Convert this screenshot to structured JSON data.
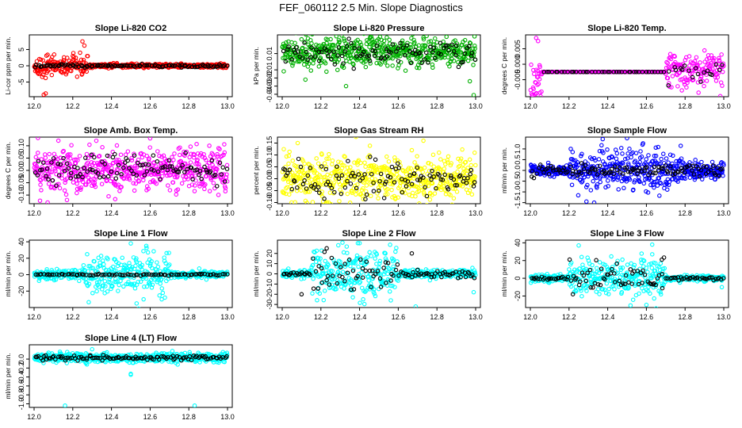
{
  "title": "FEF_060112  2.5 Min. Slope Diagnostics",
  "colors": {
    "background": "#ffffff",
    "axis": "#000000",
    "secondary": "#000000"
  },
  "chart_data": [
    {
      "type": "scatter",
      "title": "Slope Li-820 CO2",
      "ylabel": "Li-cor ppm per min.",
      "color": "#ff0000",
      "xlim": [
        12.0,
        13.0
      ],
      "ylim": [
        -9.5,
        9.5
      ],
      "xticks": [
        "12.0",
        "12.2",
        "12.4",
        "12.6",
        "12.8",
        "13.0"
      ],
      "yticks": [
        {
          "v": 5,
          "label": "5"
        },
        {
          "v": 0,
          "label": "0"
        },
        {
          "v": -5,
          "label": "-5"
        }
      ],
      "series": [
        {
          "name": "primary",
          "pattern": [
            {
              "x0": 12.0,
              "x1": 12.28,
              "sd": 1.5
            },
            {
              "x0": 12.28,
              "x1": 13.0,
              "sd": 0.3
            }
          ],
          "n": 520,
          "extra": [
            [
              12.06,
              -8.5
            ],
            [
              12.05,
              -8.9
            ],
            [
              12.25,
              7.5
            ],
            [
              12.26,
              6.2
            ],
            [
              12.07,
              3.4
            ]
          ]
        },
        {
          "name": "secondary",
          "pattern": [
            {
              "x0": 12.0,
              "x1": 13.0,
              "sd": 0.25
            }
          ],
          "n": 110,
          "extra": []
        }
      ]
    },
    {
      "type": "scatter",
      "title": "Slope Li-820 Pressure",
      "ylabel": "kPa per min.",
      "color": "#00b000",
      "xlim": [
        12.0,
        13.0
      ],
      "ylim": [
        -0.043,
        0.033
      ],
      "xticks": [
        "12.0",
        "12.2",
        "12.4",
        "12.6",
        "12.8",
        "13.0"
      ],
      "yticks": [
        {
          "v": 0.01,
          "label": "0.01"
        },
        {
          "v": -0.01,
          "label": "-0.01"
        },
        {
          "v": -0.02,
          "label": "-0.02"
        },
        {
          "v": -0.03,
          "label": "-0.03"
        },
        {
          "v": -0.04,
          "label": "-0.04"
        }
      ],
      "series": [
        {
          "name": "primary",
          "pattern": [
            {
              "x0": 12.0,
              "x1": 13.0,
              "sd": 0.009,
              "mean": 0.012
            }
          ],
          "n": 540,
          "extra": [
            [
              12.33,
              -0.03
            ],
            [
              12.99,
              -0.041
            ],
            [
              12.97,
              -0.024
            ],
            [
              12.12,
              -0.022
            ]
          ]
        },
        {
          "name": "secondary",
          "pattern": [
            {
              "x0": 12.0,
              "x1": 13.0,
              "sd": 0.007,
              "mean": 0.012
            }
          ],
          "n": 100,
          "extra": []
        }
      ]
    },
    {
      "type": "scatter",
      "title": "Slope Li-820 Temp.",
      "ylabel": "degrees C per min.",
      "color": "#ff00ff",
      "xlim": [
        12.0,
        13.0
      ],
      "ylim": [
        -0.0105,
        0.0095
      ],
      "xticks": [
        "12.0",
        "12.2",
        "12.4",
        "12.6",
        "12.8",
        "13.0"
      ],
      "yticks": [
        {
          "v": 0.005,
          "label": "0.005"
        },
        {
          "v": 0,
          "label": "0.000"
        },
        {
          "v": -0.005,
          "label": "-0.005"
        }
      ],
      "series": [
        {
          "name": "primary",
          "pattern": [
            {
              "x0": 12.0,
              "x1": 12.06,
              "sd": 0.005,
              "mean": -0.005
            },
            {
              "x0": 12.06,
              "x1": 12.7,
              "sd": 0.0,
              "mean": -0.0025,
              "line": true
            },
            {
              "x0": 12.7,
              "x1": 13.0,
              "sd": 0.003,
              "mean": -0.002
            }
          ],
          "n": 480,
          "extra": [
            [
              12.03,
              0.0085
            ],
            [
              12.04,
              0.0075
            ],
            [
              12.03,
              -0.0095
            ],
            [
              12.05,
              -0.0092
            ]
          ]
        },
        {
          "name": "secondary",
          "pattern": [
            {
              "x0": 12.06,
              "x1": 12.7,
              "sd": 0.0,
              "mean": -0.0025,
              "line": true
            },
            {
              "x0": 12.7,
              "x1": 13.0,
              "sd": 0.002,
              "mean": -0.002
            }
          ],
          "n": 60,
          "extra": []
        }
      ]
    },
    {
      "type": "scatter",
      "title": "Slope Amb. Box Temp.",
      "ylabel": "degrees C per min.",
      "color": "#ff00ff",
      "xlim": [
        12.0,
        13.0
      ],
      "ylim": [
        -0.135,
        0.135
      ],
      "xticks": [
        "12.0",
        "12.2",
        "12.4",
        "12.6",
        "12.8",
        "13.0"
      ],
      "yticks": [
        {
          "v": 0.1,
          "label": "0.10"
        },
        {
          "v": 0.05,
          "label": "0.05"
        },
        {
          "v": 0,
          "label": "0.00"
        },
        {
          "v": -0.05,
          "label": "-0.05"
        },
        {
          "v": -0.1,
          "label": "-0.10"
        }
      ],
      "series": [
        {
          "name": "primary",
          "pattern": [
            {
              "x0": 12.0,
              "x1": 13.0,
              "sd": 0.045,
              "mean": 0.0
            }
          ],
          "n": 560,
          "extra": [
            [
              12.6,
              0.13
            ],
            [
              12.07,
              -0.13
            ],
            [
              12.17,
              -0.12
            ]
          ]
        },
        {
          "name": "secondary",
          "pattern": [
            {
              "x0": 12.0,
              "x1": 13.0,
              "sd": 0.03,
              "mean": 0.005
            }
          ],
          "n": 110,
          "extra": []
        }
      ]
    },
    {
      "type": "scatter",
      "title": "Slope Gas Stream RH",
      "ylabel": "percent per min.",
      "color": "#ffff00",
      "xlim": [
        12.0,
        13.0
      ],
      "ylim": [
        -0.105,
        0.175
      ],
      "xticks": [
        "12.0",
        "12.2",
        "12.4",
        "12.6",
        "12.8",
        "13.0"
      ],
      "yticks": [
        {
          "v": 0.15,
          "label": "0.15"
        },
        {
          "v": 0.1,
          "label": "0.10"
        },
        {
          "v": 0.05,
          "label": "0.05"
        },
        {
          "v": 0,
          "label": "0.00"
        },
        {
          "v": -0.05,
          "label": "-0.05"
        },
        {
          "v": -0.1,
          "label": "-0.10"
        }
      ],
      "series": [
        {
          "name": "primary",
          "pattern": [
            {
              "x0": 12.0,
              "x1": 13.0,
              "sd": 0.045,
              "mean": 0.0
            }
          ],
          "n": 560,
          "extra": [
            [
              12.08,
              0.15
            ],
            [
              12.73,
              0.16
            ],
            [
              12.67,
              0.12
            ],
            [
              12.24,
              -0.1
            ]
          ]
        },
        {
          "name": "secondary",
          "pattern": [
            {
              "x0": 12.0,
              "x1": 13.0,
              "sd": 0.035,
              "mean": 0.0
            }
          ],
          "n": 110,
          "extra": []
        }
      ]
    },
    {
      "type": "scatter",
      "title": "Slope Sample Flow",
      "ylabel": "ml/min per min.",
      "color": "#0000ff",
      "xlim": [
        12.0,
        13.0
      ],
      "ylim": [
        -1.55,
        1.55
      ],
      "xticks": [
        "12.0",
        "12.2",
        "12.4",
        "12.6",
        "12.8",
        "13.0"
      ],
      "yticks": [
        {
          "v": 1.0,
          "label": "1.0"
        },
        {
          "v": 0.5,
          "label": "0.5"
        },
        {
          "v": 0,
          "label": "0.0"
        },
        {
          "v": -0.5,
          "label": "-0.5"
        },
        {
          "v": -1.0,
          "label": "-1.0"
        },
        {
          "v": -1.5,
          "label": "-1.5"
        }
      ],
      "series": [
        {
          "name": "primary",
          "pattern": [
            {
              "x0": 12.0,
              "x1": 12.2,
              "sd": 0.12
            },
            {
              "x0": 12.2,
              "x1": 12.8,
              "sd": 0.45
            },
            {
              "x0": 12.8,
              "x1": 13.0,
              "sd": 0.2
            }
          ],
          "n": 560,
          "extra": [
            [
              12.5,
              1.5
            ],
            [
              12.33,
              -1.5
            ],
            [
              12.29,
              -1.45
            ],
            [
              12.58,
              1.2
            ]
          ]
        },
        {
          "name": "secondary",
          "pattern": [
            {
              "x0": 12.0,
              "x1": 13.0,
              "sd": 0.15
            }
          ],
          "n": 110,
          "extra": []
        }
      ]
    },
    {
      "type": "scatter",
      "title": "Slope Line 1 Flow",
      "ylabel": "ml/min per min.",
      "color": "#00ffff",
      "xlim": [
        12.0,
        13.0
      ],
      "ylim": [
        -40,
        42
      ],
      "xticks": [
        "12.0",
        "12.2",
        "12.4",
        "12.6",
        "12.8",
        "13.0"
      ],
      "yticks": [
        {
          "v": 40,
          "label": "40"
        },
        {
          "v": 20,
          "label": "20"
        },
        {
          "v": 0,
          "label": "0"
        },
        {
          "v": -20,
          "label": "-20"
        }
      ],
      "series": [
        {
          "name": "primary",
          "pattern": [
            {
              "x0": 12.0,
              "x1": 12.25,
              "sd": 3
            },
            {
              "x0": 12.25,
              "x1": 12.7,
              "sd": 12
            },
            {
              "x0": 12.7,
              "x1": 13.0,
              "sd": 2
            }
          ],
          "n": 520,
          "extra": [
            [
              12.5,
              38
            ],
            [
              12.58,
              35
            ],
            [
              12.53,
              -35
            ],
            [
              12.66,
              -30
            ]
          ]
        },
        {
          "name": "secondary",
          "pattern": [
            {
              "x0": 12.0,
              "x1": 13.0,
              "sd": 0.5
            }
          ],
          "n": 90,
          "extra": []
        }
      ]
    },
    {
      "type": "scatter",
      "title": "Slope Line 2 Flow",
      "ylabel": "ml/min per min.",
      "color": "#00ffff",
      "xlim": [
        12.0,
        13.0
      ],
      "ylim": [
        -33,
        33
      ],
      "xticks": [
        "12.0",
        "12.2",
        "12.4",
        "12.6",
        "12.8",
        "13.0"
      ],
      "yticks": [
        {
          "v": 20,
          "label": "20"
        },
        {
          "v": 10,
          "label": "10"
        },
        {
          "v": 0,
          "label": "0"
        },
        {
          "v": -10,
          "label": "-10"
        },
        {
          "v": -20,
          "label": "-20"
        },
        {
          "v": -30,
          "label": "-30"
        }
      ],
      "series": [
        {
          "name": "primary",
          "pattern": [
            {
              "x0": 12.0,
              "x1": 12.15,
              "sd": 2
            },
            {
              "x0": 12.15,
              "x1": 12.6,
              "sd": 11
            },
            {
              "x0": 12.6,
              "x1": 13.0,
              "sd": 2
            }
          ],
          "n": 520,
          "extra": [
            [
              12.29,
              28
            ],
            [
              12.4,
              30
            ],
            [
              12.69,
              -32
            ],
            [
              12.99,
              -18
            ]
          ]
        },
        {
          "name": "secondary",
          "pattern": [
            {
              "x0": 12.0,
              "x1": 12.15,
              "sd": 1
            },
            {
              "x0": 12.15,
              "x1": 12.6,
              "sd": 9
            },
            {
              "x0": 12.6,
              "x1": 13.0,
              "sd": 2
            }
          ],
          "n": 110,
          "extra": [
            [
              12.23,
              25
            ],
            [
              12.67,
              20
            ],
            [
              12.1,
              -20
            ]
          ]
        }
      ]
    },
    {
      "type": "scatter",
      "title": "Slope Line 3 Flow",
      "ylabel": "ml/min per min.",
      "color": "#00ffff",
      "xlim": [
        12.0,
        13.0
      ],
      "ylim": [
        -33,
        43
      ],
      "xticks": [
        "12.0",
        "12.2",
        "12.4",
        "12.6",
        "12.8",
        "13.0"
      ],
      "yticks": [
        {
          "v": 40,
          "label": "40"
        },
        {
          "v": 20,
          "label": "20"
        },
        {
          "v": 0,
          "label": "0"
        },
        {
          "v": -20,
          "label": "-20"
        }
      ],
      "series": [
        {
          "name": "primary",
          "pattern": [
            {
              "x0": 12.0,
              "x1": 12.2,
              "sd": 2
            },
            {
              "x0": 12.2,
              "x1": 12.7,
              "sd": 10
            },
            {
              "x0": 12.7,
              "x1": 13.0,
              "sd": 1.5
            }
          ],
          "n": 520,
          "extra": [
            [
              12.63,
              38
            ],
            [
              12.25,
              37
            ],
            [
              12.6,
              -30
            ],
            [
              12.65,
              -34
            ],
            [
              12.99,
              -10
            ]
          ]
        },
        {
          "name": "secondary",
          "pattern": [
            {
              "x0": 12.0,
              "x1": 12.2,
              "sd": 1
            },
            {
              "x0": 12.2,
              "x1": 12.7,
              "sd": 9
            },
            {
              "x0": 12.7,
              "x1": 13.0,
              "sd": 1
            }
          ],
          "n": 110,
          "extra": [
            [
              12.68,
              21
            ],
            [
              12.22,
              -18
            ]
          ]
        }
      ]
    },
    {
      "type": "scatter",
      "title": "Slope Line 4 (LT) Flow",
      "ylabel": "ml/min per min.",
      "color": "#00ffff",
      "xlim": [
        12.0,
        13.0
      ],
      "ylim": [
        -1.08,
        0.32
      ],
      "xticks": [
        "12.0",
        "12.2",
        "12.4",
        "12.6",
        "12.8",
        "13.0"
      ],
      "yticks": [
        {
          "v": 0,
          "label": "0.0"
        },
        {
          "v": -0.2,
          "label": "-0.2"
        },
        {
          "v": -0.4,
          "label": "-0.4"
        },
        {
          "v": -0.6,
          "label": "-0.6"
        },
        {
          "v": -0.8,
          "label": "-0.8"
        },
        {
          "v": -1.0,
          "label": "-1.0"
        }
      ],
      "series": [
        {
          "name": "primary",
          "pattern": [
            {
              "x0": 12.0,
              "x1": 13.0,
              "sd": 0.05,
              "mean": 0.03
            }
          ],
          "n": 560,
          "extra": [
            [
              12.3,
              0.22
            ],
            [
              12.5,
              -0.33
            ],
            [
              12.5,
              -0.35
            ],
            [
              12.16,
              -1.04
            ],
            [
              12.83,
              -1.04
            ]
          ]
        },
        {
          "name": "secondary",
          "pattern": [
            {
              "x0": 12.0,
              "x1": 13.0,
              "sd": 0.03,
              "mean": 0.03
            }
          ],
          "n": 110,
          "extra": []
        }
      ]
    }
  ]
}
